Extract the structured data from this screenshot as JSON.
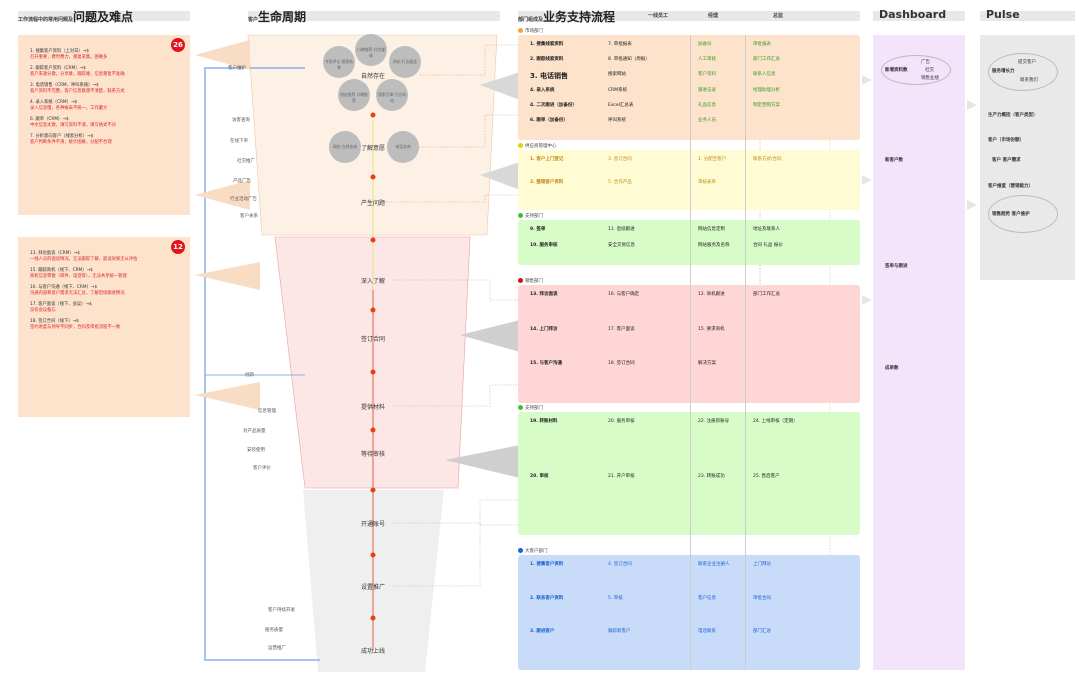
{
  "headers": {
    "issues": {
      "prefix": "工作流程中的常用问题及",
      "title": "问题及难点"
    },
    "lifecycle": {
      "prefix": "客户",
      "title": "生命周期"
    },
    "process": {
      "prefix": "部门组成及",
      "title": "业务支持流程",
      "col1": "一线员工",
      "col2": "经理",
      "col3": "总监"
    },
    "dashboard": "Dashboard",
    "pulse": "Pulse"
  },
  "issue_panels": [
    {
      "count": "26",
      "items": [
        {
          "title": "1. 搜集客户资料（上对日）→$",
          "desc": "召开重要，费时费力，重复采集，困难多"
        },
        {
          "title": "2. 跟踪客户资料（CRM）→$",
          "desc": "客户来源分散，分享难，跟踪难，信息重复不准确"
        },
        {
          "title": "3. 电话销售（CRM、呼叫系统）→$",
          "desc": "客户资料不完整，客户信息散落不清楚，联系方式"
        },
        {
          "title": "4. 录入系统（CRM）→$",
          "desc": "录入信息慢，各种报表不统一，工作量大"
        },
        {
          "title": "6. 跟单（CRM）→$",
          "desc": "中文信息太散，填写资料不清，填写格式不对"
        },
        {
          "title": "7. 分析意向客户（线索分析）→$",
          "desc": "客户判断条件不清，统计困难，分配不合理"
        }
      ]
    },
    {
      "count": "12",
      "items": [
        {
          "title": "13. 拜访面谈（CRM）→$",
          "desc": "一线人员的面谈情况，无法跟踪了解，面谈效果无从评估"
        },
        {
          "title": "15. 跟踪商机（线下、CRM）→$",
          "desc": "商机信息零散（邮件、电话等），无法共享统一管理"
        },
        {
          "title": "16. 与客户沟通（线下、CRM）→$",
          "desc": "沟通内容和客户需求无法汇总，了解后续跟进情况"
        },
        {
          "title": "17. 客户面谈（线下、会议）→$",
          "desc": "没有会议备忘"
        },
        {
          "title": "18. 签订合同（线下）→$",
          "desc": "签约进度与领导不同步，合同及审批流程不一致"
        }
      ]
    }
  ],
  "lifecycle": {
    "top_bubbles": [
      "专家评论 搜索结果",
      "口碑推荐 社交媒体",
      "网站 行业展会",
      "朋友推荐 口碑推荐",
      "搜索引擎 行业网站"
    ],
    "mid_bubbles": [
      "网站 在线咨询",
      "电话咨询"
    ],
    "stages": [
      "自然存在",
      "了解意愿",
      "产生问题",
      "深入了解",
      "签订合同",
      "提供材料",
      "等待审核",
      "开通账号",
      "设置推广",
      "成功上线"
    ],
    "line_labels": [
      "客户维护",
      "创新"
    ],
    "side_labels": [
      "访客查询",
      "在线下单",
      "社交推广",
      "产品广告",
      "行业活动广告",
      "客户关系",
      "信息管理",
      "对产品质量",
      "安装使用",
      "客户评价",
      "客户持续开发",
      "服务质量",
      "运营推广"
    ]
  },
  "sections": [
    {
      "name": "市场部门",
      "color": "#f2a13a",
      "nodes": [
        "1. 搜集线索资料",
        "2. 跟踪线索资料",
        "3. 电话销售",
        "4. 录入系统",
        "4. 二次跟进（加备份）",
        "6. 跟单（加备份）",
        "7. 审批报表",
        "8. 审批通知（周报）",
        "搜索网站",
        "CRM系统",
        "Excel汇总表",
        "呼叫系统",
        "加备份",
        "人工审核",
        "客户资料",
        "跟进记录",
        "礼品信息",
        "业务人员",
        "审批报表",
        "部门工作汇总",
        "联系人信息",
        "经理助理分析",
        "制定营销方案"
      ]
    },
    {
      "name": "供应商管理中心",
      "color": "#e6d200",
      "nodes": [
        "1. 客户上门登记",
        "2. 整理客户资料",
        "3. 签订合同",
        "5. 合作产品",
        "1. 分配至客户",
        "审核表单",
        "联系方式/合同"
      ]
    },
    {
      "name": "支持部门",
      "color": "#3cbf3c",
      "nodes": [
        "9. 签单",
        "10. 服务审核",
        "11. 后续跟进",
        "安全交易信息",
        "网站信息定制",
        "网站服务及名称",
        "地址及联系人",
        "合同 礼品 报价"
      ]
    },
    {
      "name": "销售部门",
      "color": "#d0101a",
      "nodes": [
        "13. 拜访面谈",
        "14. 上门拜访",
        "15. 与客户沟通",
        "16. 与客户确定",
        "17. 客户面谈",
        "18. 签订合同",
        "12. 商机跟进",
        "15. 要求商机",
        "解决方案",
        "部门工作汇总"
      ]
    },
    {
      "name": "支持部门",
      "color": "#3cbf3c",
      "nodes": [
        "19. 转账材料",
        "20. 审核",
        "20. 服务审核",
        "21. 开户审核",
        "22. 注册新账号",
        "23. 转账成功",
        "24. 上线审核（定期）",
        "25. 售后客户"
      ]
    },
    {
      "name": "大客户部门",
      "color": "#2060d0",
      "nodes": [
        "1. 搜集客户资料",
        "2. 联系客户资料",
        "3. 跟进客户",
        "4. 签订合同",
        "5. 审核",
        "跟踪新客户",
        "联系企业注册人",
        "客户信息",
        "电话联系",
        "上门拜访",
        "审批合同",
        "部门汇总"
      ]
    }
  ],
  "dashboard": {
    "items": [
      "新增资料数",
      "新客户数",
      "签单与跟进",
      "成单数"
    ],
    "bubble": [
      "广告",
      "社交",
      "销售业绩"
    ]
  },
  "pulse": {
    "items": [
      "提交客户",
      "服务增长力",
      "联系我们",
      "生产力概括（客户类型）",
      "客户（市场份额）",
      "客户 客户需求",
      "客户维度（营销能力）",
      "销售趋势 客户维护"
    ]
  }
}
